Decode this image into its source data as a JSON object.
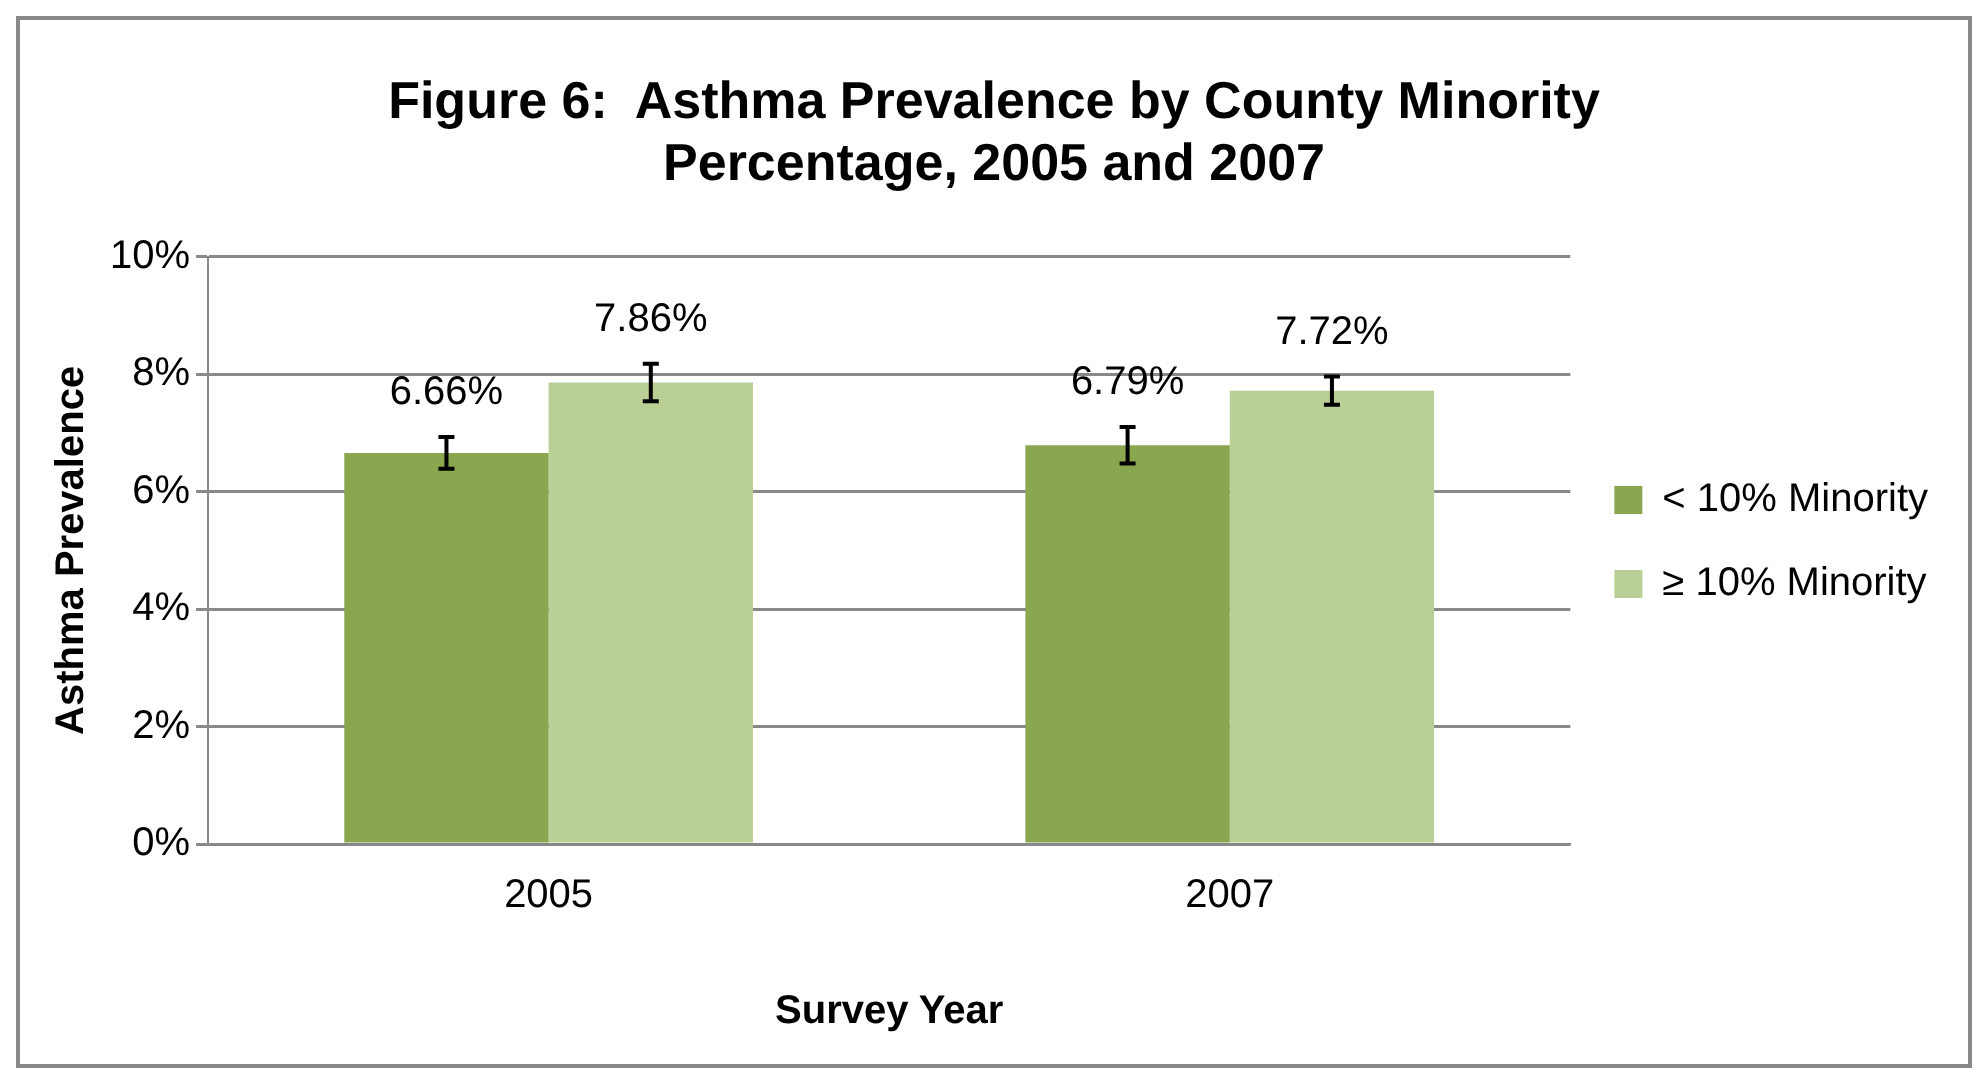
{
  "chart_data": {
    "type": "bar",
    "title": "Figure 6:  Asthma Prevalence by County Minority Percentage, 2005 and 2007",
    "xlabel": "Survey Year",
    "ylabel": "Asthma Prevalence",
    "categories": [
      "2005",
      "2007"
    ],
    "series": [
      {
        "name": "< 10% Minority",
        "color": "#8aa64e",
        "values": [
          6.66,
          6.79
        ],
        "errors": [
          0.27,
          0.31
        ],
        "value_labels": [
          "6.66%",
          "6.79%"
        ]
      },
      {
        "name": "≥ 10% Minority",
        "color": "#bacf96",
        "values": [
          7.86,
          7.72
        ],
        "errors": [
          0.32,
          0.24
        ],
        "value_labels": [
          "7.86%",
          "7.72%"
        ]
      }
    ],
    "ylim": [
      0,
      10
    ],
    "yticks": [
      {
        "value": 0,
        "label": "0%"
      },
      {
        "value": 2,
        "label": "2%"
      },
      {
        "value": 4,
        "label": "4%"
      },
      {
        "value": 6,
        "label": "6%"
      },
      {
        "value": 8,
        "label": "8%"
      },
      {
        "value": 10,
        "label": "10%"
      }
    ],
    "grid": "y",
    "legend": "right"
  }
}
